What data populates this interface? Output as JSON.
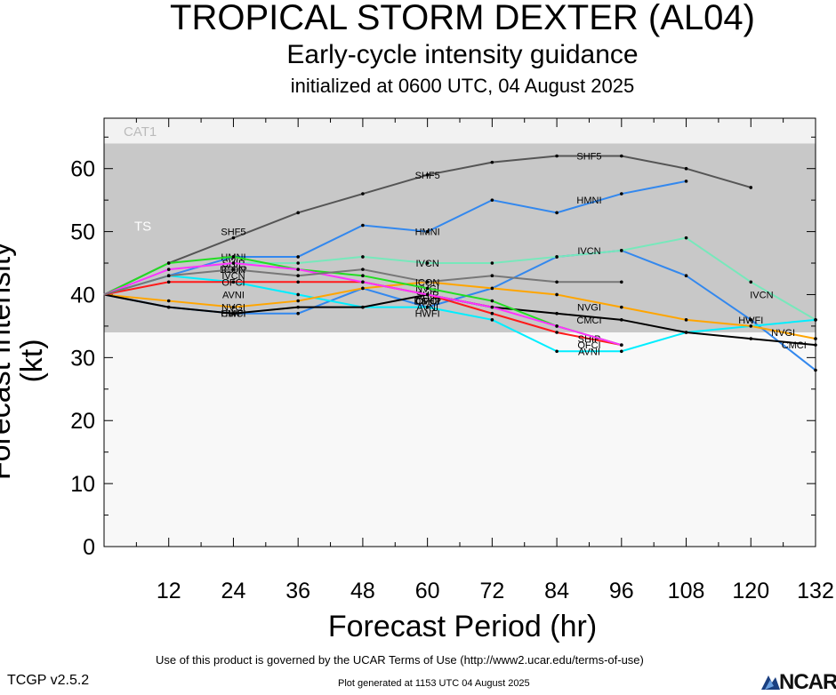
{
  "header": {
    "title": "TROPICAL STORM DEXTER (AL04)",
    "subtitle": "Early-cycle intensity guidance",
    "init": "initialized at 0600 UTC, 04 August 2025"
  },
  "footer": {
    "terms": "Use of this product is governed by the UCAR Terms of Use (http://www2.ucar.edu/terms-of-use)",
    "version": "TCGP v2.5.2",
    "generated": "Plot generated at 1153 UTC   04 August 2025",
    "logo": "NCAR"
  },
  "colors": {
    "plot_bg": "#f8f8f8",
    "ts_band": "#c8c8c8",
    "cat1_band": "#f2f2f2"
  },
  "chart_data": {
    "type": "line",
    "title": "Early-cycle intensity guidance",
    "xlabel": "Forecast Period (hr)",
    "ylabel": "Forecast Intensity (kt)",
    "xlim": [
      0,
      132
    ],
    "ylim": [
      0,
      68
    ],
    "x_ticks": [
      12,
      24,
      36,
      48,
      60,
      72,
      84,
      96,
      108,
      120,
      132
    ],
    "y_ticks": [
      0,
      10,
      20,
      30,
      40,
      50,
      60
    ],
    "bands": [
      {
        "label": "TS",
        "from": 34,
        "to": 64
      },
      {
        "label": "CAT1",
        "from": 64,
        "to": 68
      }
    ],
    "series": [
      {
        "name": "SHF5",
        "color": "#555555",
        "x": [
          0,
          12,
          24,
          36,
          48,
          60,
          72,
          84,
          96,
          108,
          120
        ],
        "y": [
          40,
          45,
          49,
          53,
          56,
          59,
          61,
          62,
          62,
          60,
          57
        ],
        "labels": [
          {
            "x": 24,
            "y": 50
          },
          {
            "x": 60,
            "y": 59
          },
          {
            "x": 90,
            "y": 62
          }
        ]
      },
      {
        "name": "HMNI",
        "color": "#3388ee",
        "x": [
          0,
          12,
          24,
          36,
          48,
          60,
          72,
          84,
          96,
          108
        ],
        "y": [
          40,
          43,
          46,
          46,
          51,
          50,
          55,
          53,
          56,
          58
        ],
        "labels": [
          {
            "x": 24,
            "y": 46
          },
          {
            "x": 60,
            "y": 50
          },
          {
            "x": 90,
            "y": 55
          }
        ]
      },
      {
        "name": "HWFI",
        "color": "#3388ee",
        "x": [
          0,
          12,
          24,
          36,
          48,
          60,
          72,
          84,
          96,
          108,
          120,
          132
        ],
        "y": [
          40,
          38,
          37,
          37,
          41,
          38,
          41,
          46,
          47,
          43,
          36,
          28
        ],
        "labels": [
          {
            "x": 24,
            "y": 37
          },
          {
            "x": 60,
            "y": 37
          },
          {
            "x": 120,
            "y": 36
          }
        ]
      },
      {
        "name": "IVCN",
        "color": "#77e8bb",
        "x": [
          0,
          12,
          24,
          36,
          48,
          60,
          72,
          84,
          96,
          108,
          120,
          132
        ],
        "y": [
          40,
          44,
          45,
          45,
          46,
          45,
          45,
          46,
          47,
          49,
          42,
          36
        ],
        "labels": [
          {
            "x": 24,
            "y": 43
          },
          {
            "x": 60,
            "y": 45
          },
          {
            "x": 90,
            "y": 47
          },
          {
            "x": 122,
            "y": 40
          }
        ]
      },
      {
        "name": "AVNI",
        "color": "#00eeff",
        "x": [
          0,
          12,
          24,
          36,
          48,
          60,
          72,
          84,
          96,
          108,
          132
        ],
        "y": [
          40,
          43,
          42,
          40,
          38,
          38,
          36,
          31,
          31,
          34,
          36
        ],
        "labels": [
          {
            "x": 24,
            "y": 40
          },
          {
            "x": 60,
            "y": 38
          },
          {
            "x": 90,
            "y": 31
          }
        ]
      },
      {
        "name": "NVGI",
        "color": "#ffa500",
        "x": [
          0,
          12,
          24,
          36,
          48,
          60,
          72,
          84,
          96,
          108,
          120,
          132
        ],
        "y": [
          40,
          39,
          38,
          39,
          41,
          42,
          41,
          40,
          38,
          36,
          35,
          33
        ],
        "labels": [
          {
            "x": 24,
            "y": 38
          },
          {
            "x": 60,
            "y": 41
          },
          {
            "x": 90,
            "y": 38
          },
          {
            "x": 126,
            "y": 34
          }
        ]
      },
      {
        "name": "CMCI",
        "color": "#000000",
        "x": [
          0,
          12,
          24,
          36,
          48,
          60,
          72,
          84,
          96,
          108,
          120,
          132
        ],
        "y": [
          40,
          38,
          37,
          38,
          38,
          40,
          38,
          37,
          36,
          34,
          33,
          32
        ],
        "labels": [
          {
            "x": 24,
            "y": 37
          },
          {
            "x": 60,
            "y": 39
          },
          {
            "x": 90,
            "y": 36
          },
          {
            "x": 128,
            "y": 32
          }
        ]
      },
      {
        "name": "OFCI",
        "color": "#ff1a1a",
        "x": [
          0,
          12,
          24,
          36,
          48,
          60,
          72,
          84,
          96
        ],
        "y": [
          40,
          42,
          42,
          42,
          42,
          40,
          37,
          34,
          32
        ],
        "labels": [
          {
            "x": 24,
            "y": 42
          },
          {
            "x": 60,
            "y": 39
          },
          {
            "x": 90,
            "y": 32
          }
        ]
      },
      {
        "name": "SHIP",
        "color": "#22dd22",
        "x": [
          0,
          12,
          24,
          36,
          48,
          60,
          72,
          84,
          96
        ],
        "y": [
          40,
          45,
          46,
          44,
          43,
          41,
          39,
          35,
          32
        ],
        "labels": [
          {
            "x": 24,
            "y": 45
          },
          {
            "x": 60,
            "y": 40
          },
          {
            "x": 90,
            "y": 33
          }
        ]
      },
      {
        "name": "DSHP",
        "color": "#ff33ff",
        "x": [
          0,
          12,
          24,
          36,
          48,
          60,
          72,
          84,
          96
        ],
        "y": [
          40,
          44,
          45,
          44,
          42,
          40,
          38,
          35,
          32
        ],
        "labels": [
          {
            "x": 24,
            "y": 44
          },
          {
            "x": 60,
            "y": 39
          }
        ]
      },
      {
        "name": "ICON",
        "color": "#777777",
        "x": [
          0,
          12,
          24,
          36,
          48,
          60,
          72,
          84,
          96
        ],
        "y": [
          40,
          43,
          44,
          43,
          44,
          42,
          43,
          42,
          42
        ],
        "labels": [
          {
            "x": 24,
            "y": 44
          },
          {
            "x": 60,
            "y": 42
          }
        ]
      }
    ]
  }
}
